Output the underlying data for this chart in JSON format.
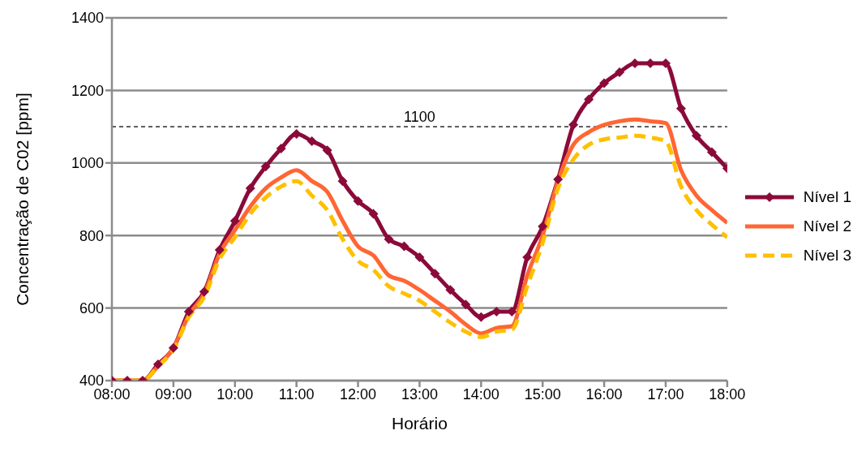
{
  "chart_data": {
    "type": "line",
    "xlabel": "Horário",
    "ylabel": "Concentração de C02 [ppm]",
    "x": [
      8,
      8.25,
      8.5,
      8.75,
      9,
      9.25,
      9.5,
      9.75,
      10,
      10.25,
      10.5,
      10.75,
      11,
      11.25,
      11.5,
      11.75,
      12,
      12.25,
      12.5,
      12.75,
      13,
      13.25,
      13.5,
      13.75,
      14,
      14.25,
      14.5,
      14.75,
      15,
      15.25,
      15.5,
      15.75,
      16,
      16.25,
      16.5,
      16.75,
      17,
      17.25,
      17.5,
      17.75,
      18
    ],
    "series": [
      {
        "name": "Nível 1",
        "color": "#8b0a3a",
        "marker": "diamond",
        "line_style": "solid",
        "values": [
          400,
          400,
          400,
          445,
          490,
          590,
          645,
          760,
          840,
          930,
          990,
          1040,
          1080,
          1060,
          1035,
          950,
          895,
          860,
          790,
          770,
          740,
          695,
          650,
          610,
          575,
          590,
          590,
          740,
          825,
          955,
          1105,
          1175,
          1220,
          1250,
          1275,
          1275,
          1275,
          1150,
          1075,
          1030,
          985
        ]
      },
      {
        "name": "Nível 2",
        "color": "#ff6633",
        "marker": "none",
        "line_style": "solid",
        "values": [
          400,
          400,
          400,
          440,
          490,
          580,
          640,
          750,
          815,
          880,
          930,
          960,
          980,
          950,
          920,
          840,
          770,
          745,
          690,
          675,
          650,
          620,
          590,
          555,
          530,
          545,
          550,
          690,
          800,
          950,
          1050,
          1085,
          1105,
          1115,
          1120,
          1115,
          1110,
          980,
          910,
          870,
          835
        ]
      },
      {
        "name": "Nível 3",
        "color": "#ffc000",
        "marker": "none",
        "line_style": "dashed",
        "values": [
          400,
          400,
          400,
          440,
          485,
          575,
          630,
          735,
          795,
          860,
          905,
          935,
          950,
          910,
          870,
          790,
          730,
          705,
          660,
          640,
          620,
          590,
          560,
          535,
          520,
          535,
          540,
          660,
          780,
          930,
          1010,
          1050,
          1065,
          1070,
          1075,
          1070,
          1060,
          935,
          870,
          830,
          795
        ]
      }
    ],
    "xlim": [
      8,
      18
    ],
    "xticks": [
      {
        "value": 8,
        "label": "08:00"
      },
      {
        "value": 9,
        "label": "09:00"
      },
      {
        "value": 10,
        "label": "10:00"
      },
      {
        "value": 11,
        "label": "11:00"
      },
      {
        "value": 12,
        "label": "12:00"
      },
      {
        "value": 13,
        "label": "13:00"
      },
      {
        "value": 14,
        "label": "14:00"
      },
      {
        "value": 15,
        "label": "15:00"
      },
      {
        "value": 16,
        "label": "16:00"
      },
      {
        "value": 17,
        "label": "17:00"
      },
      {
        "value": 18,
        "label": "18:00"
      }
    ],
    "ylim": [
      400,
      1400
    ],
    "yticks": [
      400,
      600,
      800,
      1000,
      1200,
      1400
    ],
    "ref_lines": [
      {
        "axis": "y",
        "value": 1100,
        "label": "1100",
        "color": "#000000",
        "line_style": "dashed"
      }
    ],
    "grid": "y",
    "legend": "right"
  }
}
